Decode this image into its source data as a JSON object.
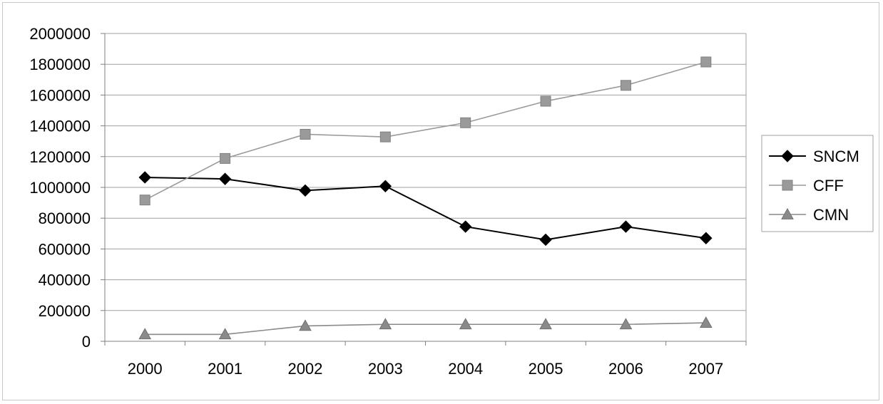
{
  "chart_data": {
    "type": "line",
    "title": "",
    "xlabel": "",
    "ylabel": "",
    "categories": [
      "2000",
      "2001",
      "2002",
      "2003",
      "2004",
      "2005",
      "2006",
      "2007"
    ],
    "ylim": [
      0,
      2000000
    ],
    "yticks": [
      "0",
      "200000",
      "400000",
      "600000",
      "800000",
      "1000000",
      "1200000",
      "1400000",
      "1600000",
      "1800000",
      "2000000"
    ],
    "grid": true,
    "legend_position": "right",
    "series": [
      {
        "name": "SNCM",
        "marker": "diamond",
        "color": "#000000",
        "values": [
          1065000,
          1055000,
          980000,
          1008000,
          745000,
          660000,
          745000,
          670000
        ]
      },
      {
        "name": "CFF",
        "marker": "square",
        "color": "#9a9a9a",
        "values": [
          918000,
          1188000,
          1345000,
          1328000,
          1420000,
          1560000,
          1663000,
          1815000
        ]
      },
      {
        "name": "CMN",
        "marker": "triangle",
        "color": "#8a8a8a",
        "values": [
          45000,
          45000,
          100000,
          110000,
          110000,
          110000,
          110000,
          120000
        ]
      }
    ]
  }
}
